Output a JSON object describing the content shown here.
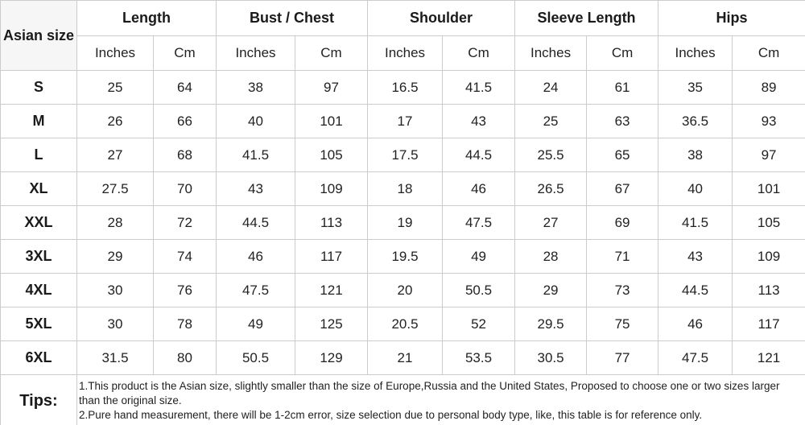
{
  "colors": {
    "accent_red": "#ff0000",
    "text_dark": "#222222",
    "border_gray": "#cccccc",
    "corner_bg": "#f6f6f6"
  },
  "table": {
    "corner_header": "Asian size",
    "groups": [
      {
        "label": "Length"
      },
      {
        "label": "Bust / Chest"
      },
      {
        "label": "Shoulder"
      },
      {
        "label": "Sleeve Length"
      },
      {
        "label": "Hips"
      }
    ],
    "units": {
      "inches": "Inches",
      "cm": "Cm"
    },
    "rows": [
      {
        "size": "S",
        "values": [
          "25",
          "64",
          "38",
          "97",
          "16.5",
          "41.5",
          "24",
          "61",
          "35",
          "89"
        ]
      },
      {
        "size": "M",
        "values": [
          "26",
          "66",
          "40",
          "101",
          "17",
          "43",
          "25",
          "63",
          "36.5",
          "93"
        ]
      },
      {
        "size": "L",
        "values": [
          "27",
          "68",
          "41.5",
          "105",
          "17.5",
          "44.5",
          "25.5",
          "65",
          "38",
          "97"
        ]
      },
      {
        "size": "XL",
        "values": [
          "27.5",
          "70",
          "43",
          "109",
          "18",
          "46",
          "26.5",
          "67",
          "40",
          "101"
        ]
      },
      {
        "size": "XXL",
        "values": [
          "28",
          "72",
          "44.5",
          "113",
          "19",
          "47.5",
          "27",
          "69",
          "41.5",
          "105"
        ]
      },
      {
        "size": "3XL",
        "values": [
          "29",
          "74",
          "46",
          "117",
          "19.5",
          "49",
          "28",
          "71",
          "43",
          "109"
        ]
      },
      {
        "size": "4XL",
        "values": [
          "30",
          "76",
          "47.5",
          "121",
          "20",
          "50.5",
          "29",
          "73",
          "44.5",
          "113"
        ]
      },
      {
        "size": "5XL",
        "values": [
          "30",
          "78",
          "49",
          "125",
          "20.5",
          "52",
          "29.5",
          "75",
          "46",
          "117"
        ]
      },
      {
        "size": "6XL",
        "values": [
          "31.5",
          "80",
          "50.5",
          "129",
          "21",
          "53.5",
          "30.5",
          "77",
          "47.5",
          "121"
        ]
      }
    ],
    "tips": {
      "label": "Tips:",
      "lines": [
        "1.This product is the Asian size, slightly smaller than the size of Europe,Russia and the United States, Proposed to choose one or two sizes larger than the original size.",
        "2.Pure hand measurement, there will be 1-2cm error, size selection due to personal body type, like, this table is for reference only."
      ]
    }
  },
  "chart_data": {
    "type": "table",
    "title": "Asian size garment measurement chart",
    "columns": [
      "Asian size",
      "Length (Inches)",
      "Length (Cm)",
      "Bust / Chest (Inches)",
      "Bust / Chest (Cm)",
      "Shoulder (Inches)",
      "Shoulder (Cm)",
      "Sleeve Length (Inches)",
      "Sleeve Length (Cm)",
      "Hips (Inches)",
      "Hips (Cm)"
    ],
    "rows": [
      [
        "S",
        25,
        64,
        38,
        97,
        16.5,
        41.5,
        24,
        61,
        35,
        89
      ],
      [
        "M",
        26,
        66,
        40,
        101,
        17,
        43,
        25,
        63,
        36.5,
        93
      ],
      [
        "L",
        27,
        68,
        41.5,
        105,
        17.5,
        44.5,
        25.5,
        65,
        38,
        97
      ],
      [
        "XL",
        27.5,
        70,
        43,
        109,
        18,
        46,
        26.5,
        67,
        40,
        101
      ],
      [
        "XXL",
        28,
        72,
        44.5,
        113,
        19,
        47.5,
        27,
        69,
        41.5,
        105
      ],
      [
        "3XL",
        29,
        74,
        46,
        117,
        19.5,
        49,
        28,
        71,
        43,
        109
      ],
      [
        "4XL",
        30,
        76,
        47.5,
        121,
        20,
        50.5,
        29,
        73,
        44.5,
        113
      ],
      [
        "5XL",
        30,
        78,
        49,
        125,
        20.5,
        52,
        29.5,
        75,
        46,
        117
      ],
      [
        "6XL",
        31.5,
        80,
        50.5,
        129,
        21,
        53.5,
        30.5,
        77,
        47.5,
        121
      ]
    ],
    "notes": [
      "1.This product is the Asian size, slightly smaller than the size of Europe,Russia and the United States, Proposed to choose one or two sizes larger than the original size.",
      "2.Pure hand measurement, there will be 1-2cm error, size selection due to personal body type, like, this table is for reference only."
    ]
  }
}
